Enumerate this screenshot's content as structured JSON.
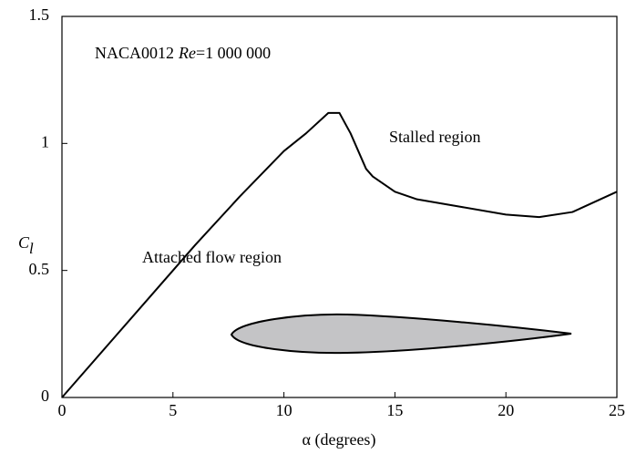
{
  "chart_data": {
    "type": "line",
    "xlabel": "α (degrees)",
    "ylabel": "C",
    "ylabel_sub": "l",
    "annotations": [
      {
        "parts": [
          "NACA0012",
          "Re",
          "=1 000 000"
        ]
      },
      {
        "text": "Stalled region"
      },
      {
        "text": "Attached flow region"
      }
    ],
    "x": [
      0,
      2,
      4,
      6,
      8,
      10,
      11,
      12,
      12.5,
      13,
      13.7,
      14,
      15,
      16,
      18,
      20,
      21.5,
      23,
      24,
      25
    ],
    "series": [
      {
        "name": "Cl",
        "color": "#000000",
        "values": [
          0,
          0.2,
          0.4,
          0.6,
          0.79,
          0.97,
          1.04,
          1.12,
          1.12,
          1.04,
          0.9,
          0.87,
          0.81,
          0.78,
          0.75,
          0.72,
          0.71,
          0.73,
          0.77,
          0.81
        ]
      }
    ],
    "xlim": [
      0,
      25
    ],
    "xticks": [
      0,
      5,
      10,
      15,
      20,
      25
    ],
    "ylim": [
      0,
      1.5
    ],
    "yticks": [
      0,
      0.5,
      1,
      1.5
    ]
  }
}
